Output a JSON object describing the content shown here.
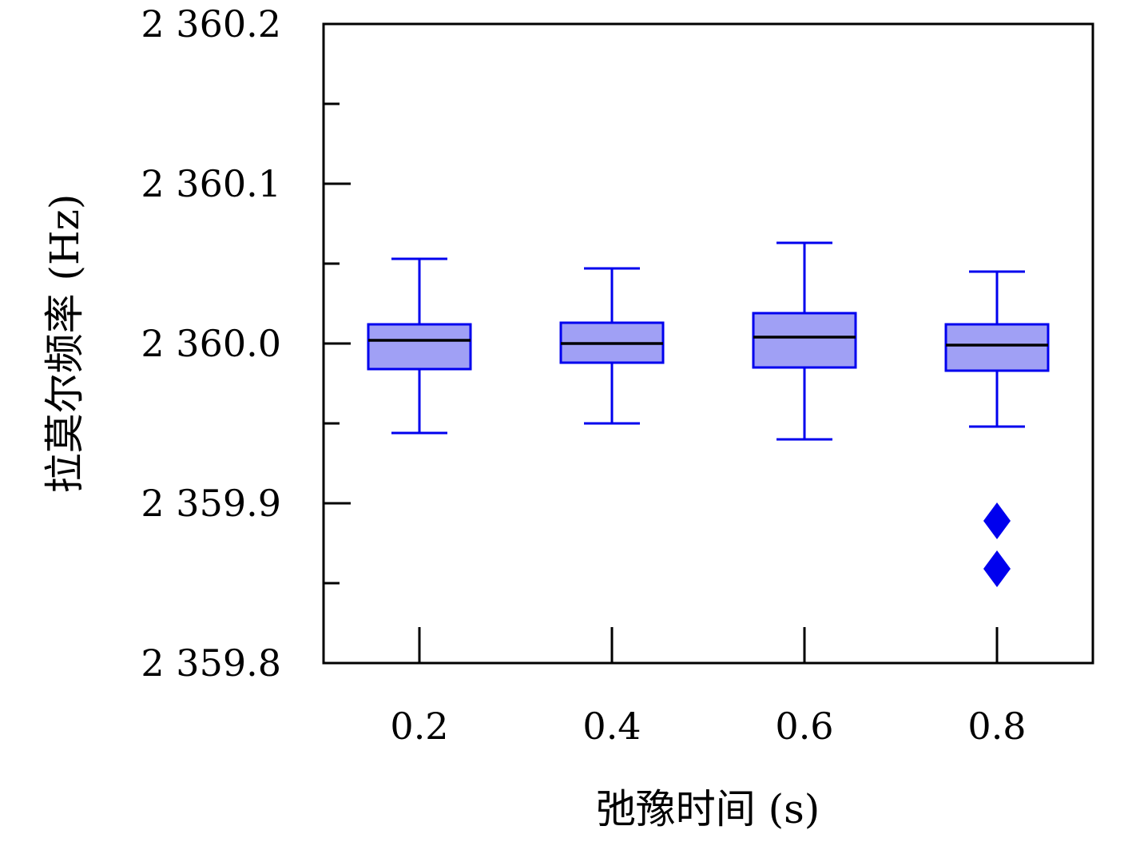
{
  "chart_data": {
    "type": "box",
    "xlabel": "弛豫时间 (s)",
    "ylabel": "拉莫尔频率 (Hz)",
    "ylim": [
      2359.8,
      2360.2
    ],
    "y_ticks": [
      2359.8,
      2359.9,
      2360.0,
      2360.1,
      2360.2
    ],
    "y_minor_ticks": [
      2359.85,
      2359.95,
      2360.05,
      2360.15
    ],
    "y_tick_labels": [
      "2 359.8",
      "2 359.9",
      "2 360.0",
      "2 360.1",
      "2 360.2"
    ],
    "categories": [
      "0.2",
      "0.4",
      "0.6",
      "0.8"
    ],
    "boxes": [
      {
        "category": "0.2",
        "whisker_low": 2359.944,
        "q1": 2359.984,
        "median": 2360.002,
        "q3": 2360.012,
        "whisker_high": 2360.053,
        "outliers": []
      },
      {
        "category": "0.4",
        "whisker_low": 2359.95,
        "q1": 2359.988,
        "median": 2360.0,
        "q3": 2360.013,
        "whisker_high": 2360.047,
        "outliers": []
      },
      {
        "category": "0.6",
        "whisker_low": 2359.94,
        "q1": 2359.985,
        "median": 2360.004,
        "q3": 2360.019,
        "whisker_high": 2360.063,
        "outliers": []
      },
      {
        "category": "0.8",
        "whisker_low": 2359.948,
        "q1": 2359.983,
        "median": 2359.999,
        "q3": 2360.012,
        "whisker_high": 2360.045,
        "outliers": [
          2359.889,
          2359.859
        ]
      }
    ],
    "colors": {
      "box_fill": "#a0a0f5",
      "box_edge": "#0000ee",
      "median": "#000000",
      "outlier": "#0000ee"
    },
    "grid": false,
    "legend": "none"
  }
}
